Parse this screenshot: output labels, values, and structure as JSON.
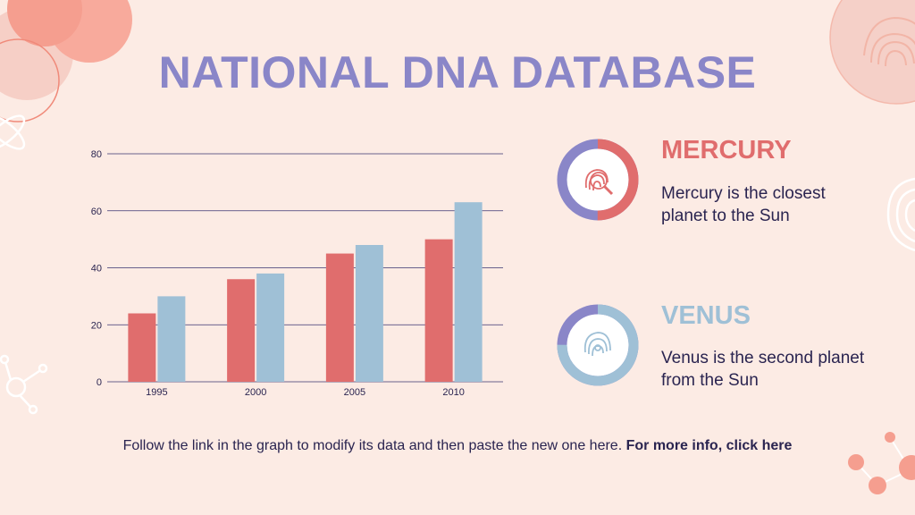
{
  "page": {
    "title": "NATIONAL DNA DATABASE",
    "footer_text": "Follow the link in the graph to modify its data and then paste the new one here.",
    "footer_link": "For more info, click here"
  },
  "cards": [
    {
      "title": "MERCURY",
      "text": "Mercury is the closest planet to the Sun",
      "title_color": "#e06d6d",
      "icon": "fingerprint-magnifier-icon",
      "ring_fraction": 0.5
    },
    {
      "title": "VENUS",
      "text": "Venus is the second planet from the Sun",
      "title_color": "#9fc0d6",
      "icon": "fingerprint-icon",
      "ring_fraction": 0.75
    }
  ],
  "colors": {
    "accent_purple": "#8a86c8",
    "red": "#e06d6d",
    "blue": "#9fc0d6",
    "background": "#fcebe4"
  },
  "chart_data": {
    "type": "bar",
    "categories": [
      "1995",
      "2000",
      "2005",
      "2010"
    ],
    "series": [
      {
        "values": [
          24,
          36,
          45,
          50
        ],
        "color": "#e06d6d"
      },
      {
        "values": [
          30,
          38,
          48,
          63
        ],
        "color": "#9fc0d6"
      }
    ],
    "yticks": [
      0,
      20,
      40,
      60,
      80
    ],
    "ylim": [
      0,
      80
    ],
    "grid": true
  }
}
